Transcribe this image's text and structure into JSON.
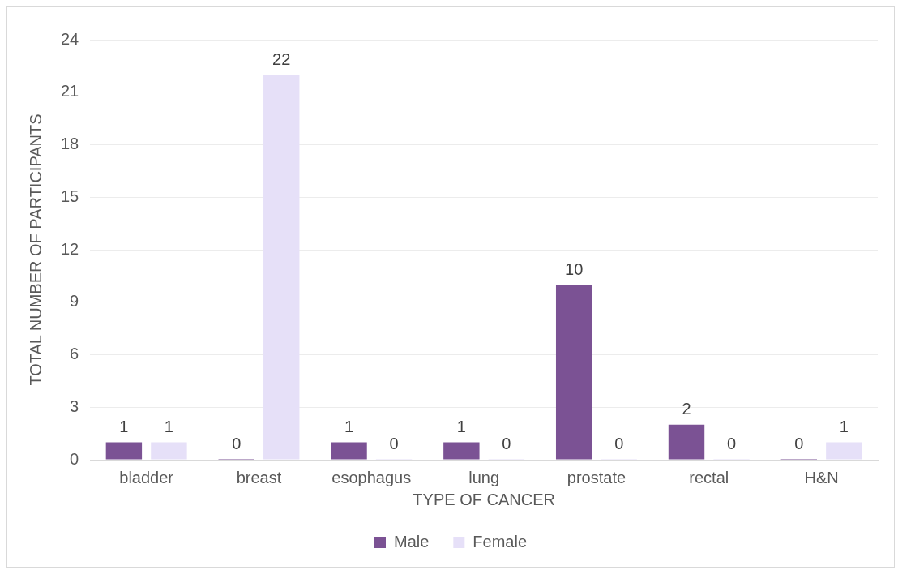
{
  "chart_data": {
    "type": "bar",
    "xlabel": "TYPE OF CANCER",
    "ylabel": "TOTAL NUMBER OF PARTICIPANTS",
    "categories": [
      "bladder",
      "breast",
      "esophagus",
      "lung",
      "prostate",
      "rectal",
      "H&N"
    ],
    "series": [
      {
        "name": "Male",
        "color": "#7b5294",
        "values": [
          1,
          0,
          1,
          1,
          10,
          2,
          0
        ]
      },
      {
        "name": "Female",
        "color": "#e6e0f8",
        "values": [
          1,
          22,
          0,
          0,
          0,
          0,
          1
        ]
      }
    ],
    "ylim": [
      0,
      24
    ],
    "yticks": [
      0,
      3,
      6,
      9,
      12,
      15,
      18,
      21,
      24
    ],
    "grid": "y",
    "legend": "bottom",
    "data_labels": true
  }
}
